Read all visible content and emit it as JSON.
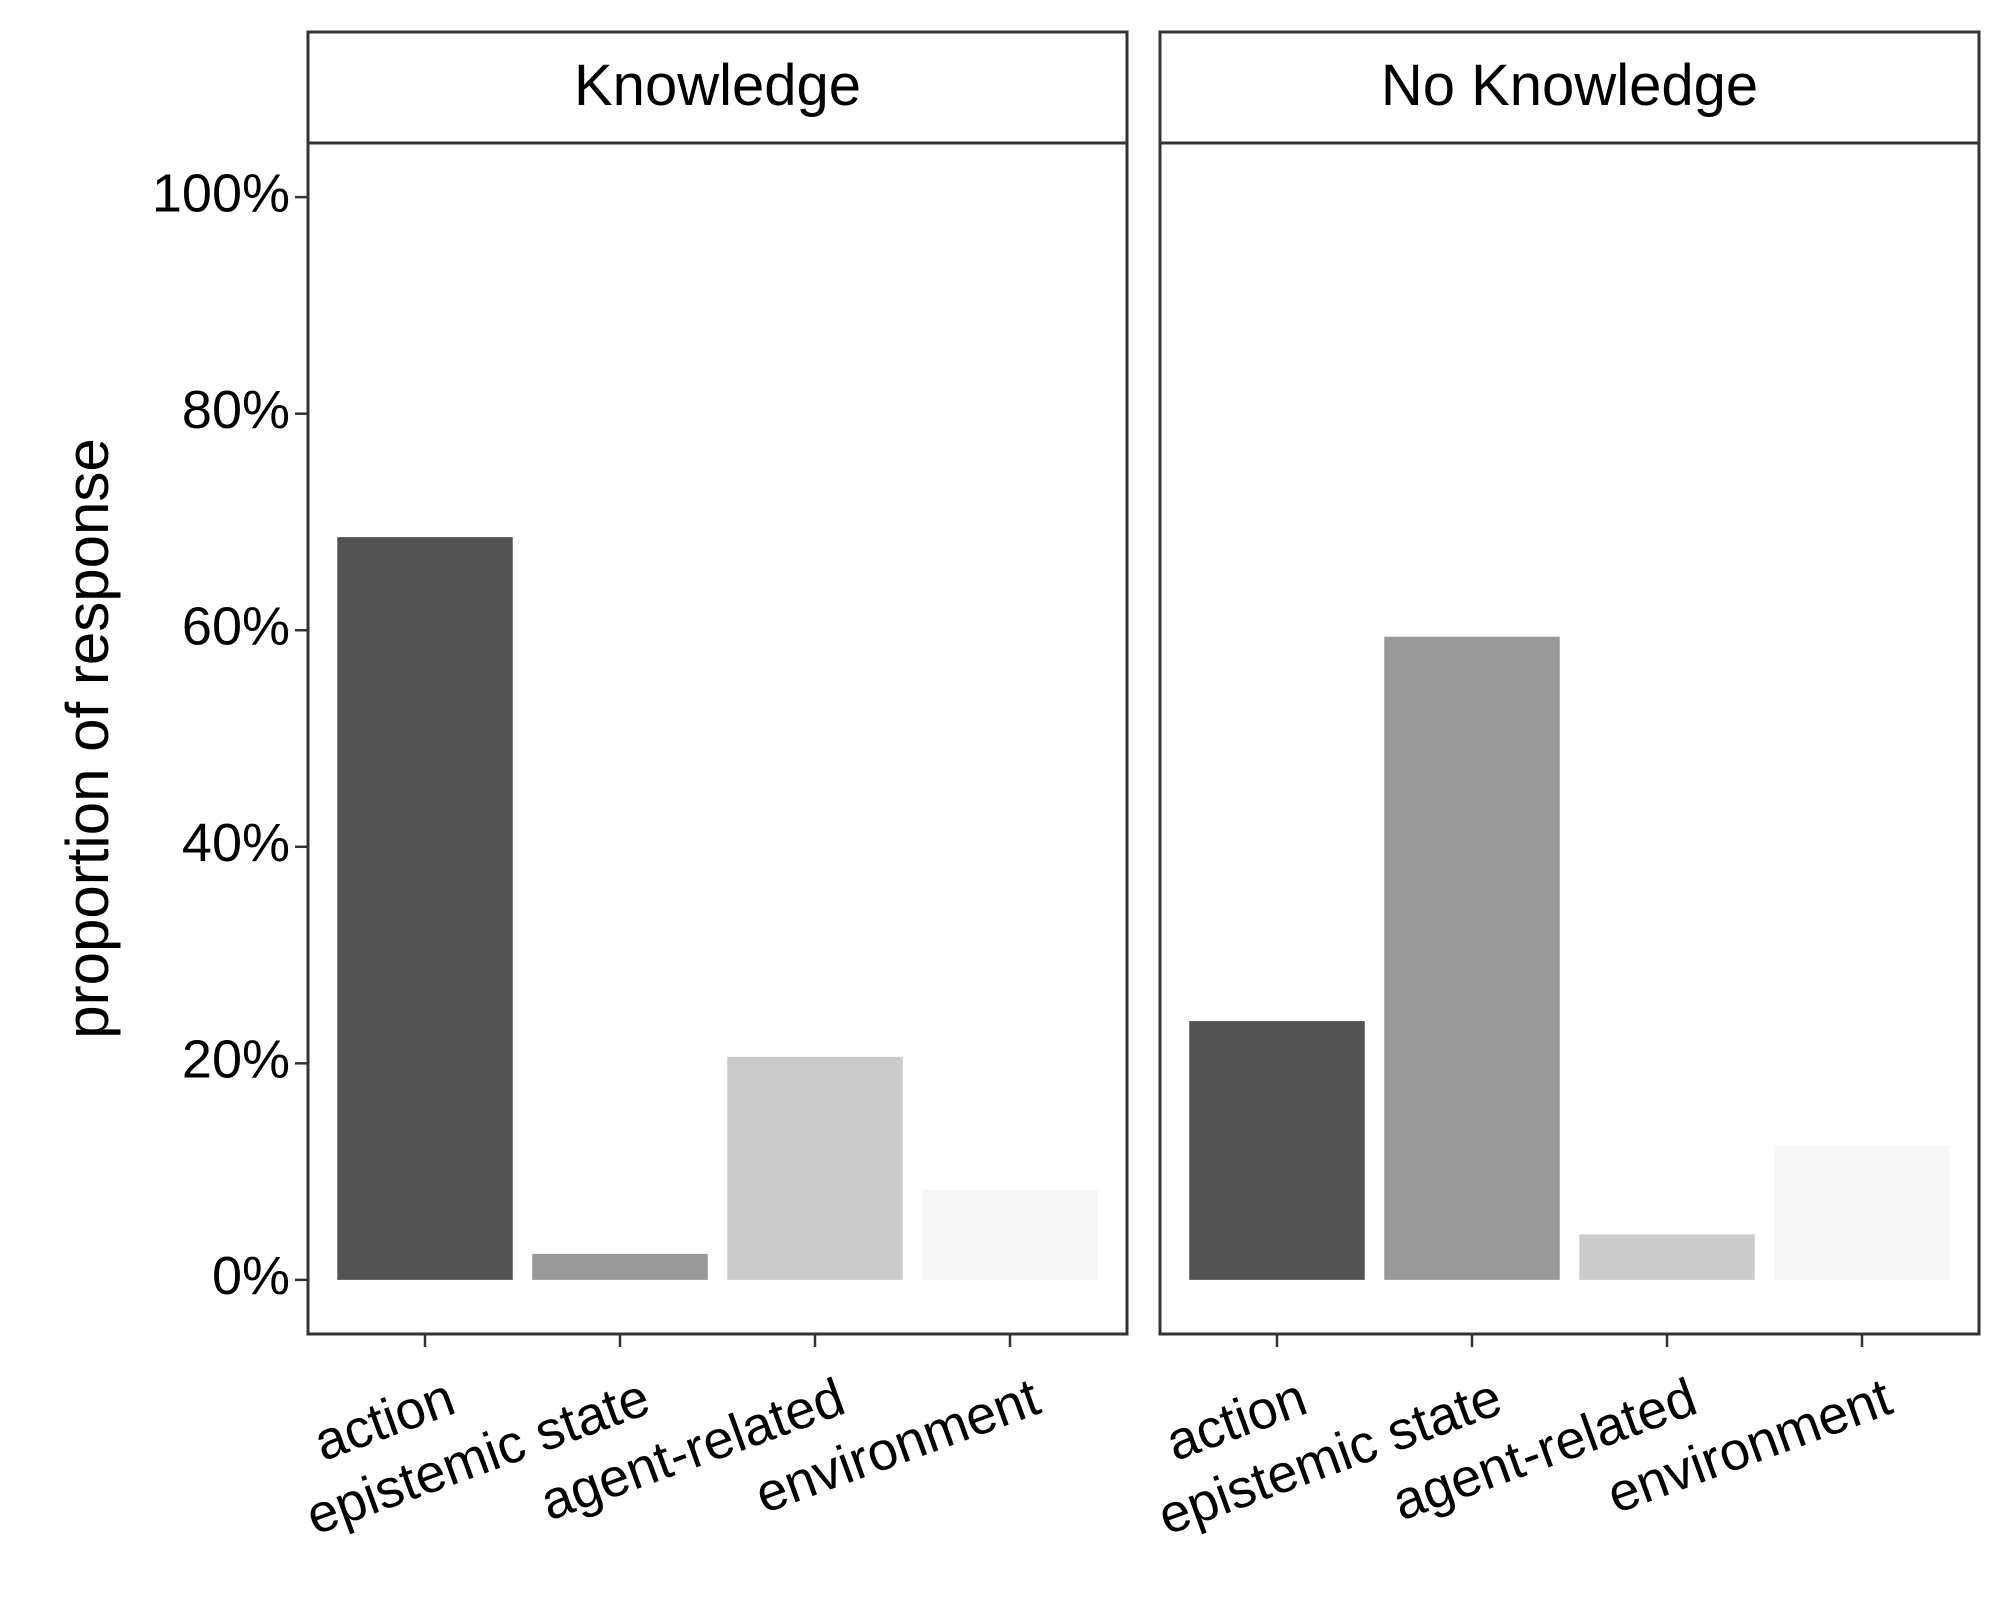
{
  "chart_data": {
    "type": "bar",
    "ylabel": "proportion of response",
    "xlabel": "",
    "ylim": [
      -0.05,
      1.05
    ],
    "y_ticks": [
      0,
      0.2,
      0.4,
      0.6,
      0.8,
      1.0
    ],
    "y_tick_labels": [
      "0%",
      "20%",
      "40%",
      "60%",
      "80%",
      "100%"
    ],
    "grid": false,
    "legend": "none",
    "categories": [
      "action",
      "epistemic state",
      "agent-related",
      "environment"
    ],
    "category_colors": [
      "#535353",
      "#989898",
      "#cbcbcb",
      "#f6f6f6"
    ],
    "panels": [
      {
        "title": "Knowledge",
        "values": [
          0.686,
          0.024,
          0.206,
          0.083
        ]
      },
      {
        "title": "No Knowledge",
        "values": [
          0.239,
          0.594,
          0.042,
          0.124
        ]
      }
    ]
  }
}
